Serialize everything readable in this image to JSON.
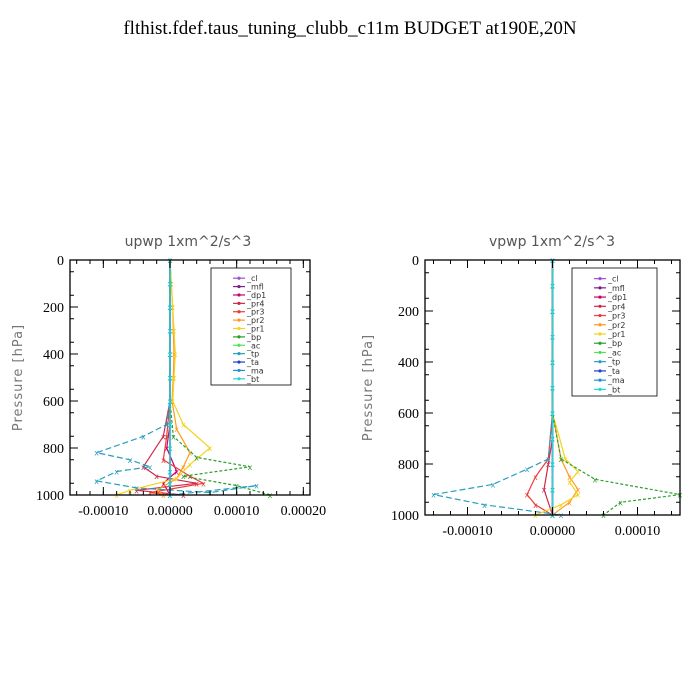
{
  "title": "flthist.fdef.taus_tuning_clubb_c11m  BUDGET at190E,20N",
  "legend_entries": [
    {
      "label": "_cl",
      "color": "#9c4fd6"
    },
    {
      "label": "_mfl",
      "color": "#7a1f8a"
    },
    {
      "label": "_dp1",
      "color": "#c8006e"
    },
    {
      "label": "_pr4",
      "color": "#cc2a4a"
    },
    {
      "label": "_pr3",
      "color": "#ee3b3b"
    },
    {
      "label": "_pr2",
      "color": "#ff9a1f"
    },
    {
      "label": "_pr1",
      "color": "#f4d21e"
    },
    {
      "label": "_bp",
      "color": "#2ca02c"
    },
    {
      "label": "_ac",
      "color": "#55e055"
    },
    {
      "label": "_tp",
      "color": "#2a9fbd"
    },
    {
      "label": "_ta",
      "color": "#1f3fd0"
    },
    {
      "label": "_ma",
      "color": "#2090d8"
    },
    {
      "label": "_bt",
      "color": "#20d8d8"
    }
  ],
  "chart_data": [
    {
      "type": "line",
      "title": "upwp   1xm^2/s^3",
      "ylabel": "Pressure [hPa]",
      "xlabel": "",
      "ylim": [
        1000,
        0
      ],
      "xlim": [
        -0.00015,
        0.00021
      ],
      "yticks": [
        0,
        200,
        400,
        600,
        800,
        1000
      ],
      "xticks": [
        -0.0001,
        0.0,
        0.0001,
        0.0002
      ],
      "xtick_labels": [
        "-0.00010",
        "0.00000",
        "0.00010",
        "0.00020"
      ],
      "ytick_labels": [
        "0",
        "200",
        "400",
        "600",
        "800",
        "1000"
      ],
      "series": [
        {
          "name": "_cl",
          "x": [
            0,
            0,
            0,
            0,
            0,
            0,
            0,
            0,
            0,
            0,
            0,
            0
          ],
          "y": [
            0,
            100,
            200,
            300,
            400,
            500,
            600,
            700,
            800,
            900,
            950,
            1000
          ]
        },
        {
          "name": "_mfl",
          "x": [
            0,
            0,
            0,
            0,
            0,
            0,
            0,
            0,
            0,
            0,
            0,
            0
          ],
          "y": [
            0,
            100,
            200,
            300,
            400,
            500,
            600,
            700,
            800,
            900,
            950,
            1000
          ]
        },
        {
          "name": "_dp1",
          "x": [
            0,
            0,
            0,
            0,
            0,
            0,
            0,
            0,
            -5e-06,
            1e-05,
            -1e-05,
            0
          ],
          "y": [
            0,
            100,
            200,
            300,
            400,
            500,
            600,
            700,
            800,
            900,
            950,
            1000
          ]
        },
        {
          "name": "_pr4",
          "x": [
            0,
            0,
            0,
            0,
            0,
            0,
            0,
            -1e-05,
            -4e-05,
            -2e-05,
            4e-05,
            -5e-05,
            2e-05
          ],
          "y": [
            0,
            100,
            200,
            300,
            400,
            500,
            600,
            750,
            880,
            920,
            950,
            980,
            1000
          ]
        },
        {
          "name": "_pr3",
          "x": [
            0,
            0,
            0,
            0,
            0,
            0,
            0,
            -5e-06,
            -1e-05,
            3e-05,
            5e-05,
            -3e-05,
            0
          ],
          "y": [
            0,
            100,
            200,
            300,
            400,
            500,
            600,
            750,
            850,
            920,
            950,
            990,
            1000
          ]
        },
        {
          "name": "_pr2",
          "x": [
            0,
            2e-06,
            4e-06,
            5e-06,
            6e-06,
            5e-06,
            3e-06,
            1e-05,
            3e-05,
            2e-05,
            1e-05,
            -2e-05,
            -1e-05
          ],
          "y": [
            0,
            100,
            200,
            300,
            400,
            500,
            600,
            720,
            820,
            880,
            930,
            980,
            1000
          ]
        },
        {
          "name": "_pr1",
          "x": [
            0,
            2e-06,
            4e-06,
            6e-06,
            8e-06,
            6e-06,
            4e-06,
            2e-05,
            6e-05,
            3e-05,
            1e-05,
            -6e-05,
            -8e-05
          ],
          "y": [
            0,
            100,
            200,
            300,
            400,
            500,
            600,
            700,
            800,
            870,
            930,
            980,
            1000
          ]
        },
        {
          "name": "_bp",
          "x": [
            0,
            0,
            0,
            0,
            0,
            0,
            0,
            5e-06,
            4e-05,
            0.00012,
            2e-05,
            0.0001,
            0.00015
          ],
          "y": [
            0,
            100,
            200,
            300,
            400,
            500,
            600,
            750,
            840,
            880,
            920,
            960,
            1000
          ]
        },
        {
          "name": "_ac",
          "x": [
            0,
            0,
            0,
            0,
            0,
            0,
            0,
            0,
            0,
            0,
            0,
            0
          ],
          "y": [
            0,
            100,
            200,
            300,
            400,
            500,
            600,
            700,
            800,
            900,
            950,
            1000
          ]
        },
        {
          "name": "_tp",
          "x": [
            0,
            0,
            0,
            0,
            0,
            0,
            0,
            -5e-06,
            -4e-05,
            -0.00011,
            -6e-05,
            -3e-05,
            -8e-05,
            -0.00011,
            -5e-05,
            6e-05,
            0.00013,
            0.0
          ],
          "y": [
            0,
            100,
            200,
            300,
            400,
            500,
            600,
            700,
            750,
            820,
            850,
            880,
            900,
            940,
            970,
            990,
            960,
            1000
          ]
        },
        {
          "name": "_ta",
          "x": [
            0,
            0,
            0,
            0,
            0,
            0,
            0,
            0,
            0,
            0,
            0,
            0
          ],
          "y": [
            0,
            100,
            200,
            300,
            400,
            500,
            600,
            700,
            800,
            900,
            950,
            1000
          ]
        },
        {
          "name": "_ma",
          "x": [
            0,
            0,
            0,
            0,
            0,
            0,
            0,
            0,
            0,
            0,
            0,
            0
          ],
          "y": [
            0,
            100,
            200,
            300,
            400,
            500,
            600,
            700,
            800,
            900,
            950,
            1000
          ]
        },
        {
          "name": "_bt",
          "x": [
            0,
            0,
            0,
            0,
            0,
            0,
            0,
            0,
            0,
            0,
            0,
            0
          ],
          "y": [
            0,
            100,
            200,
            300,
            400,
            500,
            600,
            700,
            800,
            900,
            950,
            1000
          ]
        }
      ]
    },
    {
      "type": "line",
      "title": "vpwp   1xm^2/s^3",
      "ylabel": "Pressure [hPa]",
      "xlabel": "",
      "ylim": [
        1000,
        0
      ],
      "xlim": [
        -0.00015,
        0.00015
      ],
      "yticks": [
        0,
        200,
        400,
        600,
        800,
        1000
      ],
      "xticks": [
        -0.0001,
        0.0,
        0.0001
      ],
      "xtick_labels": [
        "-0.00010",
        "0.00000",
        "0.00010"
      ],
      "ytick_labels": [
        "0",
        "200",
        "400",
        "600",
        "800",
        "1000"
      ],
      "series": [
        {
          "name": "_cl",
          "x": [
            0,
            0,
            0,
            0,
            0,
            0,
            0,
            0,
            0,
            0,
            0
          ],
          "y": [
            0,
            100,
            200,
            300,
            400,
            500,
            600,
            700,
            800,
            900,
            1000
          ]
        },
        {
          "name": "_mfl",
          "x": [
            0,
            0,
            0,
            0,
            0,
            0,
            0,
            0,
            0,
            0,
            0
          ],
          "y": [
            0,
            100,
            200,
            300,
            400,
            500,
            600,
            700,
            800,
            900,
            1000
          ]
        },
        {
          "name": "_dp1",
          "x": [
            0,
            0,
            0,
            0,
            0,
            0,
            0,
            0,
            0,
            0,
            0
          ],
          "y": [
            0,
            100,
            200,
            300,
            400,
            500,
            600,
            700,
            800,
            900,
            1000
          ]
        },
        {
          "name": "_pr4",
          "x": [
            0,
            0,
            0,
            0,
            0,
            0,
            0,
            0,
            -5e-06,
            -1e-05,
            0
          ],
          "y": [
            0,
            100,
            200,
            300,
            400,
            500,
            600,
            700,
            800,
            900,
            1000
          ]
        },
        {
          "name": "_pr3",
          "x": [
            0,
            0,
            0,
            0,
            0,
            0,
            0,
            -5e-06,
            -2e-05,
            -3e-05,
            -2e-05,
            0
          ],
          "y": [
            0,
            100,
            200,
            300,
            400,
            500,
            600,
            780,
            850,
            920,
            960,
            1000
          ]
        },
        {
          "name": "_pr2",
          "x": [
            0,
            0,
            0,
            0,
            0,
            0,
            0,
            1e-05,
            2e-05,
            3e-05,
            2e-05,
            0
          ],
          "y": [
            0,
            100,
            200,
            300,
            400,
            500,
            600,
            780,
            850,
            900,
            950,
            1000
          ]
        },
        {
          "name": "_pr1",
          "x": [
            0,
            0,
            0,
            0,
            0,
            0,
            0,
            1.5e-05,
            3e-05,
            2e-05,
            3e-05,
            1e-05,
            -2e-05
          ],
          "y": [
            0,
            100,
            200,
            300,
            400,
            500,
            600,
            780,
            830,
            870,
            920,
            960,
            1000
          ]
        },
        {
          "name": "_bp",
          "x": [
            0,
            0,
            0,
            0,
            0,
            0,
            0,
            1e-05,
            5e-05,
            0.00015,
            8e-05,
            6e-05
          ],
          "y": [
            0,
            100,
            200,
            300,
            400,
            500,
            600,
            780,
            860,
            920,
            950,
            1000
          ]
        },
        {
          "name": "_ac",
          "x": [
            0,
            0,
            0,
            0,
            0,
            0,
            0,
            0,
            0,
            0,
            0
          ],
          "y": [
            0,
            100,
            200,
            300,
            400,
            500,
            600,
            700,
            800,
            900,
            1000
          ]
        },
        {
          "name": "_tp",
          "x": [
            0,
            0,
            0,
            0,
            0,
            0,
            0,
            -5e-06,
            -3e-05,
            -7e-05,
            -0.00014,
            -8e-05,
            1e-05
          ],
          "y": [
            0,
            100,
            200,
            300,
            400,
            500,
            600,
            780,
            820,
            880,
            920,
            960,
            1000
          ]
        },
        {
          "name": "_ta",
          "x": [
            0,
            0,
            0,
            0,
            0,
            0,
            0,
            0,
            0,
            0,
            0
          ],
          "y": [
            0,
            100,
            200,
            300,
            400,
            500,
            600,
            700,
            800,
            900,
            1000
          ]
        },
        {
          "name": "_ma",
          "x": [
            0,
            0,
            0,
            0,
            0,
            0,
            0,
            0,
            0,
            0,
            0
          ],
          "y": [
            0,
            100,
            200,
            300,
            400,
            500,
            600,
            700,
            800,
            900,
            1000
          ]
        },
        {
          "name": "_bt",
          "x": [
            0,
            0,
            0,
            0,
            0,
            0,
            0,
            0,
            0,
            0,
            0
          ],
          "y": [
            0,
            100,
            200,
            300,
            400,
            500,
            600,
            700,
            800,
            900,
            1000
          ]
        }
      ]
    }
  ]
}
